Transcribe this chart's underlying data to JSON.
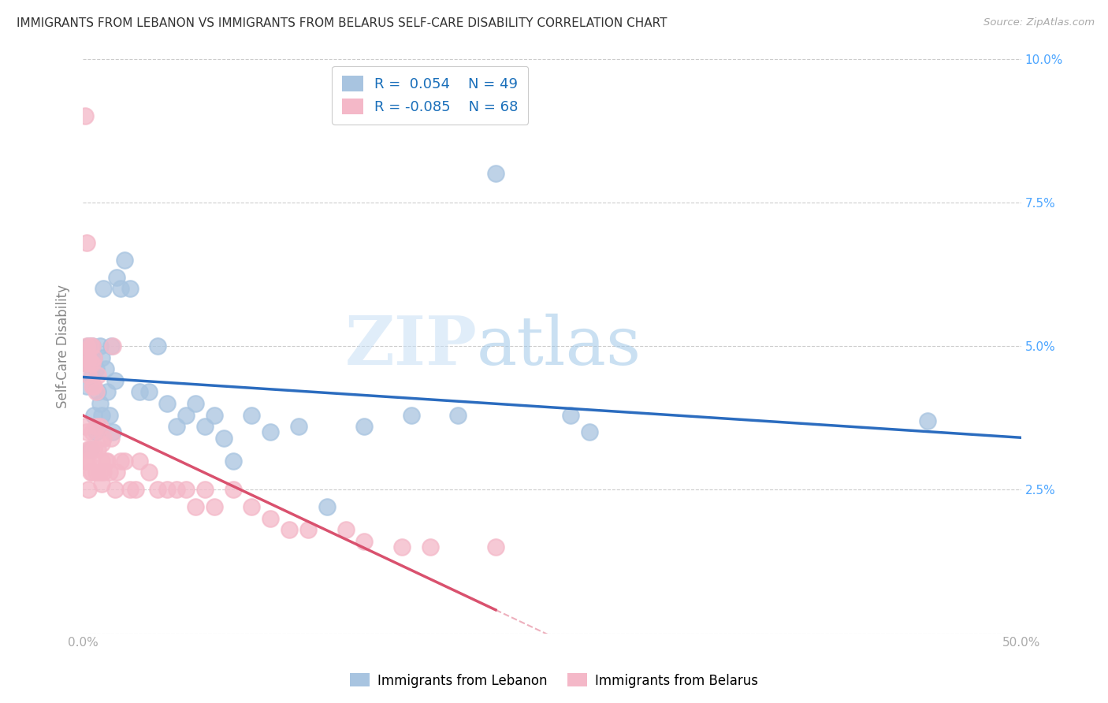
{
  "title": "IMMIGRANTS FROM LEBANON VS IMMIGRANTS FROM BELARUS SELF-CARE DISABILITY CORRELATION CHART",
  "source": "Source: ZipAtlas.com",
  "ylabel": "Self-Care Disability",
  "xlim": [
    0.0,
    0.5
  ],
  "ylim": [
    0.0,
    0.1
  ],
  "xticks": [
    0.0,
    0.1,
    0.2,
    0.3,
    0.4,
    0.5
  ],
  "yticks": [
    0.0,
    0.025,
    0.05,
    0.075,
    0.1
  ],
  "xticklabels": [
    "0.0%",
    "",
    "",
    "",
    "",
    "50.0%"
  ],
  "yticklabels": [
    "",
    "2.5%",
    "5.0%",
    "7.5%",
    "10.0%"
  ],
  "legend_r1": "R =  0.054",
  "legend_n1": "N = 49",
  "legend_r2": "R = -0.085",
  "legend_n2": "N = 68",
  "color_lebanon": "#a8c4e0",
  "color_belarus": "#f4b8c8",
  "line_color_lebanon": "#2b6cbf",
  "line_color_belarus": "#d9516e",
  "watermark_zip": "ZIP",
  "watermark_atlas": "atlas",
  "lebanon_x": [
    0.002,
    0.002,
    0.003,
    0.004,
    0.004,
    0.005,
    0.005,
    0.006,
    0.006,
    0.007,
    0.007,
    0.008,
    0.009,
    0.009,
    0.01,
    0.01,
    0.011,
    0.012,
    0.013,
    0.014,
    0.015,
    0.016,
    0.017,
    0.018,
    0.02,
    0.022,
    0.025,
    0.03,
    0.035,
    0.04,
    0.045,
    0.05,
    0.055,
    0.06,
    0.065,
    0.07,
    0.075,
    0.08,
    0.09,
    0.1,
    0.115,
    0.13,
    0.15,
    0.175,
    0.2,
    0.22,
    0.26,
    0.27,
    0.45
  ],
  "lebanon_y": [
    0.047,
    0.043,
    0.05,
    0.048,
    0.032,
    0.05,
    0.045,
    0.048,
    0.038,
    0.046,
    0.035,
    0.042,
    0.05,
    0.04,
    0.048,
    0.038,
    0.06,
    0.046,
    0.042,
    0.038,
    0.05,
    0.035,
    0.044,
    0.062,
    0.06,
    0.065,
    0.06,
    0.042,
    0.042,
    0.05,
    0.04,
    0.036,
    0.038,
    0.04,
    0.036,
    0.038,
    0.034,
    0.03,
    0.038,
    0.035,
    0.036,
    0.022,
    0.036,
    0.038,
    0.038,
    0.08,
    0.038,
    0.035,
    0.037
  ],
  "belarus_x": [
    0.001,
    0.001,
    0.001,
    0.001,
    0.002,
    0.002,
    0.002,
    0.002,
    0.002,
    0.003,
    0.003,
    0.003,
    0.003,
    0.003,
    0.004,
    0.004,
    0.004,
    0.004,
    0.005,
    0.005,
    0.005,
    0.005,
    0.005,
    0.006,
    0.006,
    0.006,
    0.007,
    0.007,
    0.007,
    0.008,
    0.008,
    0.009,
    0.009,
    0.01,
    0.01,
    0.01,
    0.011,
    0.011,
    0.012,
    0.013,
    0.014,
    0.015,
    0.016,
    0.017,
    0.018,
    0.02,
    0.022,
    0.025,
    0.028,
    0.03,
    0.035,
    0.04,
    0.045,
    0.05,
    0.055,
    0.06,
    0.065,
    0.07,
    0.08,
    0.09,
    0.1,
    0.11,
    0.12,
    0.14,
    0.15,
    0.17,
    0.185,
    0.22
  ],
  "belarus_y": [
    0.09,
    0.048,
    0.036,
    0.03,
    0.068,
    0.05,
    0.047,
    0.035,
    0.03,
    0.048,
    0.045,
    0.032,
    0.03,
    0.025,
    0.05,
    0.047,
    0.032,
    0.028,
    0.05,
    0.047,
    0.043,
    0.035,
    0.028,
    0.048,
    0.043,
    0.032,
    0.042,
    0.036,
    0.028,
    0.045,
    0.032,
    0.036,
    0.028,
    0.033,
    0.03,
    0.026,
    0.034,
    0.028,
    0.03,
    0.03,
    0.028,
    0.034,
    0.05,
    0.025,
    0.028,
    0.03,
    0.03,
    0.025,
    0.025,
    0.03,
    0.028,
    0.025,
    0.025,
    0.025,
    0.025,
    0.022,
    0.025,
    0.022,
    0.025,
    0.022,
    0.02,
    0.018,
    0.018,
    0.018,
    0.016,
    0.015,
    0.015,
    0.015
  ],
  "background_color": "#ffffff",
  "grid_color": "#cccccc",
  "title_color": "#333333",
  "axis_label_color": "#888888",
  "tick_color_y_right": "#4da6ff",
  "tick_color_x": "#aaaaaa",
  "legend_text_color": "#1a6fba"
}
